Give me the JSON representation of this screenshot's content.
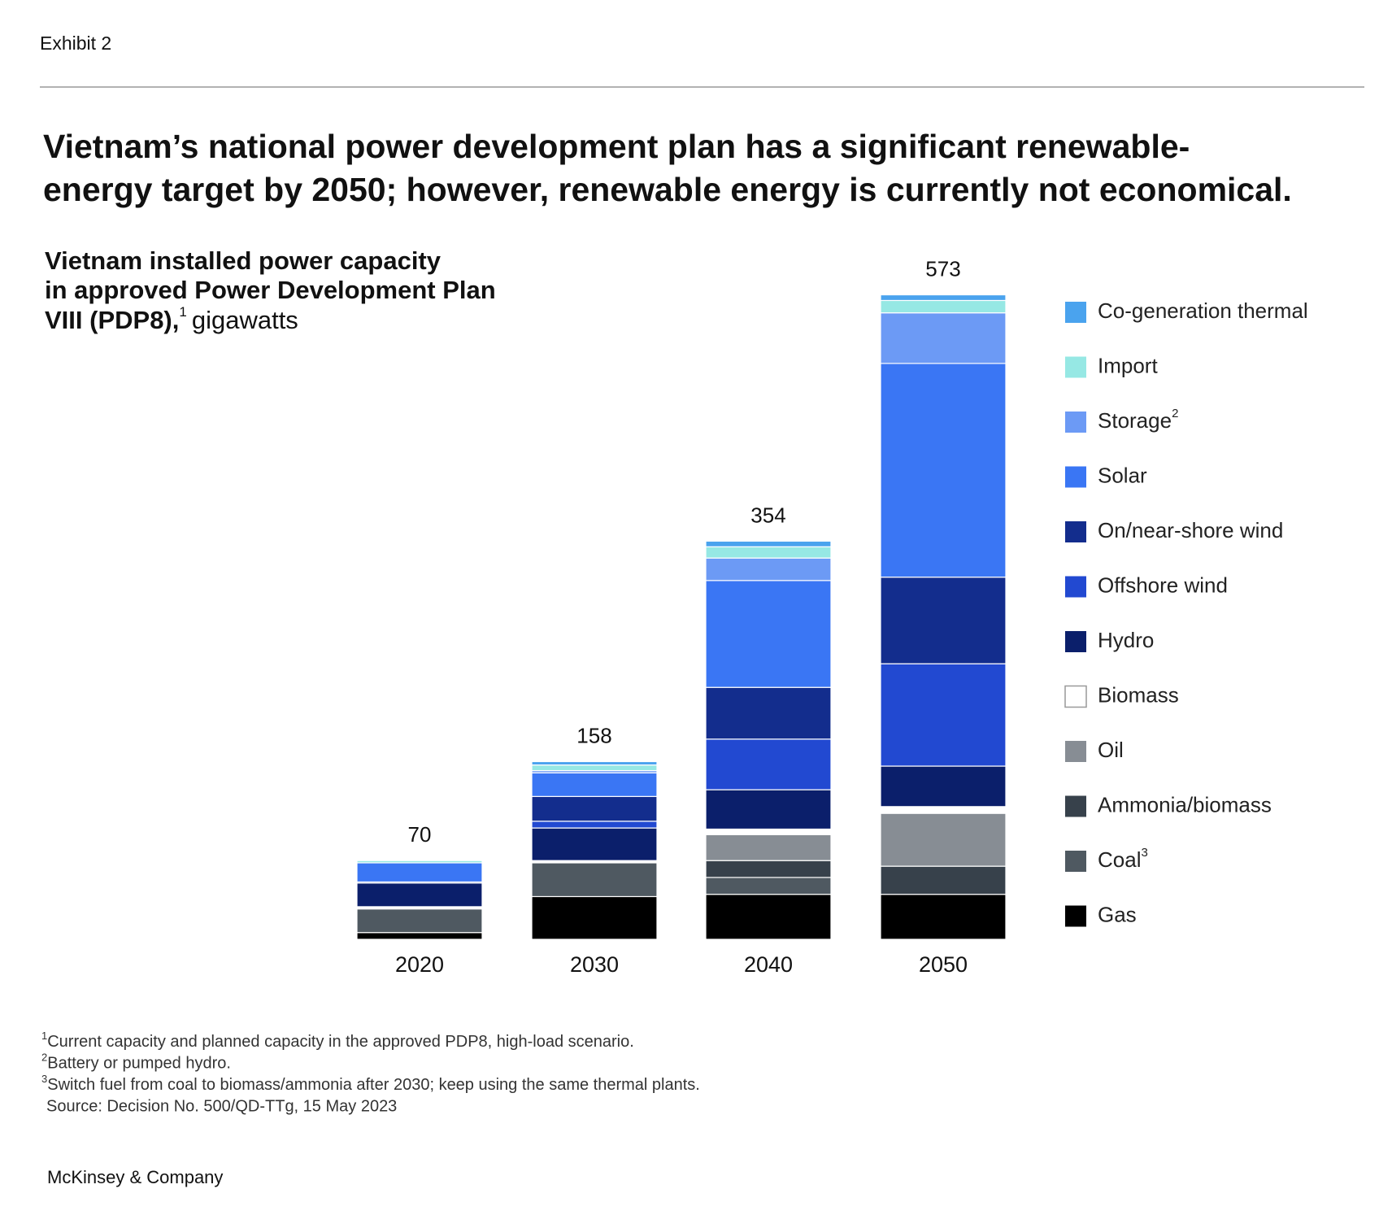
{
  "header": "Exhibit 2",
  "chart_data": {
    "type": "stacked_bar",
    "title": [
      "Vietnam’s national power development plan has a significant renewable-",
      "energy target by 2050; however, renewable energy is currently not economical."
    ],
    "subtitle": [
      "Vietnam installed power capacity",
      "in approved Power Development Plan",
      "VIII (PDP8),"
    ],
    "subtitle_note": "1",
    "unit": "gigawatts",
    "categories": [
      "2020",
      "2030",
      "2040",
      "2050"
    ],
    "totals": [
      70,
      158,
      354,
      573
    ],
    "series": [
      {
        "name": "Gas",
        "color": "#000000",
        "values": [
          6,
          38,
          40,
          40
        ]
      },
      {
        "name": "Coal",
        "note": "3",
        "color": "#4f5961",
        "values": [
          21,
          30,
          15,
          0
        ]
      },
      {
        "name": "Ammonia/biomass",
        "color": "#37414b",
        "values": [
          0,
          0,
          15,
          25
        ]
      },
      {
        "name": "Oil",
        "color": "#878d94",
        "values": [
          1,
          0,
          23,
          47
        ]
      },
      {
        "name": "Biomass",
        "color": "#ffffff",
        "values": [
          1,
          2,
          5,
          6
        ]
      },
      {
        "name": "Hydro",
        "color": "#0b1f6b",
        "values": [
          21,
          29,
          35,
          36
        ]
      },
      {
        "name": "Offshore wind",
        "color": "#2249d1",
        "values": [
          0,
          6,
          45,
          91
        ]
      },
      {
        "name": "On/near-shore wind",
        "color": "#132d8d",
        "values": [
          1,
          22,
          46,
          77
        ]
      },
      {
        "name": "Solar",
        "color": "#3a76f4",
        "values": [
          17,
          21,
          95,
          190
        ]
      },
      {
        "name": "Storage",
        "note": "2",
        "color": "#6c9af5",
        "values": [
          0,
          2,
          20,
          45
        ]
      },
      {
        "name": "Import",
        "color": "#96e8e4",
        "values": [
          2,
          5,
          10,
          11
        ]
      },
      {
        "name": "Co-generation thermal",
        "color": "#4aa3ee",
        "values": [
          0,
          3,
          5,
          5
        ]
      }
    ]
  },
  "footnotes": [
    {
      "marker": "1",
      "text": "Current capacity and planned capacity in the approved PDP8, high-load scenario."
    },
    {
      "marker": "2",
      "text": "Battery or pumped hydro."
    },
    {
      "marker": "3",
      "text": "Switch fuel from coal to biomass/ammonia after 2030; keep using the same thermal plants."
    }
  ],
  "source": "Source: Decision No. 500/QD-TTg, 15 May 2023",
  "footer": "McKinsey & Company"
}
